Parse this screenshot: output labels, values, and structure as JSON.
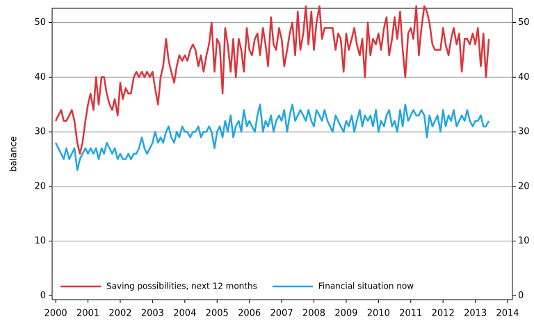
{
  "chart_data": {
    "type": "line",
    "y_label": "balance",
    "x": [
      2000,
      2000.08,
      2000.17,
      2000.25,
      2000.33,
      2000.42,
      2000.5,
      2000.58,
      2000.67,
      2000.75,
      2000.83,
      2000.92,
      2001,
      2001.08,
      2001.17,
      2001.25,
      2001.33,
      2001.42,
      2001.5,
      2001.58,
      2001.67,
      2001.75,
      2001.83,
      2001.92,
      2002,
      2002.08,
      2002.17,
      2002.25,
      2002.33,
      2002.42,
      2002.5,
      2002.58,
      2002.67,
      2002.75,
      2002.83,
      2002.92,
      2003,
      2003.08,
      2003.17,
      2003.25,
      2003.33,
      2003.42,
      2003.5,
      2003.58,
      2003.67,
      2003.75,
      2003.83,
      2003.92,
      2004,
      2004.08,
      2004.17,
      2004.25,
      2004.33,
      2004.42,
      2004.5,
      2004.58,
      2004.67,
      2004.75,
      2004.83,
      2004.92,
      2005,
      2005.08,
      2005.17,
      2005.25,
      2005.33,
      2005.42,
      2005.5,
      2005.58,
      2005.67,
      2005.75,
      2005.83,
      2005.92,
      2006,
      2006.08,
      2006.17,
      2006.25,
      2006.33,
      2006.42,
      2006.5,
      2006.58,
      2006.67,
      2006.75,
      2006.83,
      2006.92,
      2007,
      2007.08,
      2007.17,
      2007.25,
      2007.33,
      2007.42,
      2007.5,
      2007.58,
      2007.67,
      2007.75,
      2007.83,
      2007.92,
      2008,
      2008.08,
      2008.17,
      2008.25,
      2008.33,
      2008.42,
      2008.5,
      2008.58,
      2008.67,
      2008.75,
      2008.83,
      2008.92,
      2009,
      2009.08,
      2009.17,
      2009.25,
      2009.33,
      2009.42,
      2009.5,
      2009.58,
      2009.67,
      2009.75,
      2009.83,
      2009.92,
      2010,
      2010.08,
      2010.17,
      2010.25,
      2010.33,
      2010.42,
      2010.5,
      2010.58,
      2010.67,
      2010.75,
      2010.83,
      2010.92,
      2011,
      2011.08,
      2011.17,
      2011.25,
      2011.33,
      2011.42,
      2011.5,
      2011.58,
      2011.67,
      2011.75,
      2011.83,
      2011.92,
      2012,
      2012.08,
      2012.17,
      2012.25,
      2012.33,
      2012.42,
      2012.5,
      2012.58,
      2012.67,
      2012.75,
      2012.83,
      2012.92,
      2013,
      2013.08,
      2013.17,
      2013.25,
      2013.33,
      2013.42
    ],
    "series": [
      {
        "name": "Saving possibilities, next 12 months",
        "color": "#d9353a",
        "values": [
          32,
          33,
          34,
          32,
          32,
          33,
          34,
          32,
          28,
          26,
          28,
          32,
          35,
          37,
          34,
          40,
          35,
          40,
          40,
          37,
          35,
          34,
          36,
          33,
          39,
          36,
          38,
          37,
          37,
          40,
          41,
          40,
          41,
          40,
          41,
          40,
          41,
          38,
          35,
          40,
          42,
          47,
          43,
          41,
          39,
          42,
          44,
          43,
          44,
          43,
          45,
          46,
          45,
          42,
          44,
          41,
          44,
          46,
          50,
          41,
          47,
          46,
          37,
          49,
          46,
          41,
          47,
          40,
          47,
          45,
          41,
          49,
          45,
          44,
          47,
          48,
          44,
          49,
          46,
          42,
          51,
          46,
          45,
          49,
          47,
          42,
          45,
          48,
          50,
          44,
          52,
          45,
          48,
          53,
          46,
          52,
          45,
          50,
          53,
          47,
          49,
          49,
          49,
          49,
          45,
          48,
          47,
          41,
          48,
          45,
          47,
          49,
          46,
          44,
          47,
          40,
          50,
          44,
          47,
          46,
          48,
          45,
          49,
          51,
          44,
          47,
          51,
          47,
          52,
          45,
          40,
          48,
          49,
          47,
          53,
          44,
          49,
          53,
          52,
          50,
          46,
          45,
          45,
          45,
          49,
          46,
          44,
          47,
          49,
          46,
          48,
          41,
          47,
          47,
          46,
          48,
          46,
          49,
          42,
          48,
          40,
          47
        ]
      },
      {
        "name": "Financial situation now",
        "color": "#22a5e0",
        "values": [
          28,
          27,
          26,
          25,
          27,
          25,
          26,
          27,
          23,
          25,
          26,
          27,
          26,
          27,
          26,
          27,
          25,
          27,
          26,
          28,
          27,
          26,
          27,
          25,
          26,
          25,
          25,
          26,
          25,
          26,
          26,
          27,
          29,
          27,
          26,
          27,
          28,
          30,
          28,
          29,
          28,
          30,
          31,
          29,
          28,
          30,
          29,
          31,
          30,
          30,
          29,
          30,
          30,
          31,
          29,
          30,
          30,
          31,
          30,
          27,
          30,
          31,
          29,
          32,
          30,
          33,
          29,
          31,
          32,
          30,
          34,
          31,
          32,
          31,
          30,
          33,
          35,
          30,
          32,
          31,
          33,
          30,
          32,
          33,
          32,
          34,
          30,
          33,
          35,
          32,
          33,
          34,
          33,
          32,
          34,
          32,
          31,
          34,
          33,
          32,
          34,
          32,
          31,
          30,
          33,
          32,
          31,
          30,
          32,
          31,
          33,
          30,
          32,
          34,
          31,
          33,
          32,
          33,
          31,
          34,
          30,
          32,
          31,
          33,
          34,
          31,
          32,
          30,
          34,
          31,
          35,
          32,
          33,
          34,
          33,
          33,
          34,
          33,
          29,
          33,
          31,
          32,
          33,
          30,
          34,
          31,
          33,
          32,
          34,
          31,
          32,
          33,
          32,
          34,
          32,
          31,
          32,
          32,
          33,
          31,
          31,
          32
        ]
      }
    ],
    "xlim": [
      1999.89,
      2014.15
    ],
    "xticks": [
      2000,
      2001,
      2002,
      2003,
      2004,
      2005,
      2006,
      2007,
      2008,
      2009,
      2010,
      2011,
      2012,
      2013,
      2014
    ],
    "ylim": [
      -0.7,
      52.6
    ],
    "yticks": [
      0,
      10,
      20,
      30,
      40,
      50
    ],
    "grid": true,
    "legend": "bottom-left"
  }
}
